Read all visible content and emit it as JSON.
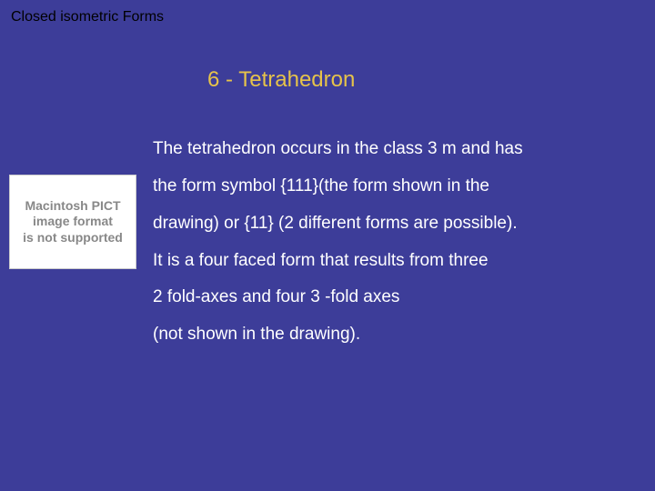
{
  "header": "Closed isometric Forms",
  "title": "6 - Tetrahedron",
  "image": {
    "placeholder_line1": "Macintosh PICT",
    "placeholder_line2": "image format",
    "placeholder_line3": "is not supported",
    "text_color": "#888888",
    "bg_color": "#ffffff"
  },
  "body": {
    "line1": "The tetrahedron occurs in the class 3 m and has",
    "line2": "the form symbol {111}(the form shown in the",
    "line3": "drawing) or {11} (2 different forms are possible).",
    "line4": "It is a four faced form that results from three",
    "line5": "2 fold-axes and four 3 -fold axes",
    "line6": "(not shown in the drawing)."
  },
  "colors": {
    "background": "#3d3d99",
    "header_text": "#000000",
    "title_text": "#e6c34a",
    "body_text": "#ffffff"
  },
  "fonts": {
    "family": "Arial",
    "header_size": 16,
    "title_size": 24,
    "body_size": 19
  }
}
